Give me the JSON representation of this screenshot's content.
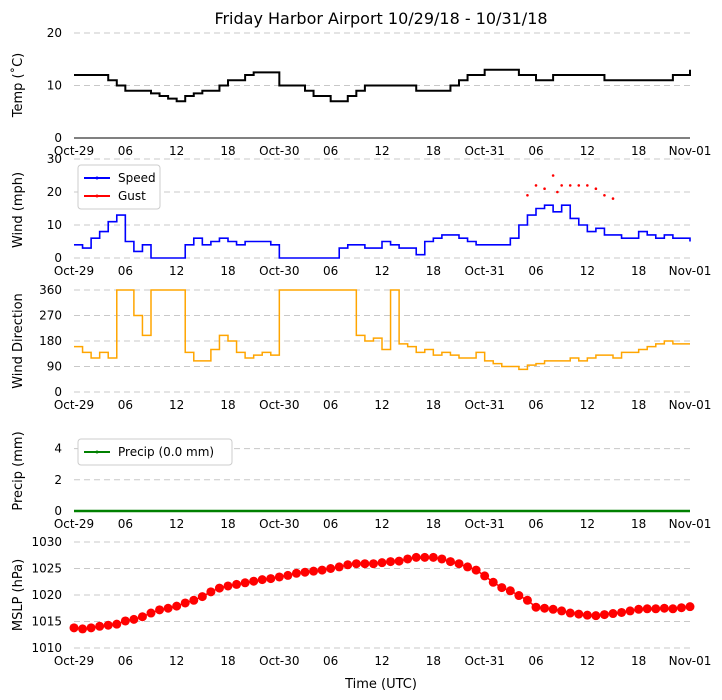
{
  "title": "Friday Harbor Airport 10/29/18 - 10/31/18",
  "x_axis_label": "Time (UTC)",
  "x_ticks": [
    "Oct-29",
    "06",
    "12",
    "18",
    "Oct-30",
    "06",
    "12",
    "18",
    "Oct-31",
    "06",
    "12",
    "18",
    "Nov-01"
  ],
  "colors": {
    "temp": "#000000",
    "speed": "#0000ff",
    "gust": "#ff0000",
    "direction": "#ffa500",
    "precip": "#008000",
    "mslp": "#ff0000",
    "grid": "#c8c8c8"
  },
  "chart_data": [
    {
      "type": "line",
      "name": "temperature",
      "ylabel": "Temp (˚C)",
      "ylim": [
        0,
        20
      ],
      "yticks": [
        "0",
        "10",
        "20"
      ],
      "x": [
        0,
        2,
        4,
        5,
        6,
        8,
        9,
        10,
        11,
        12,
        13,
        14,
        15,
        16,
        17,
        18,
        19,
        20,
        21,
        22,
        24,
        25,
        26,
        27,
        28,
        30,
        31,
        32,
        33,
        34,
        36,
        38,
        40,
        41,
        42,
        43,
        44,
        45,
        46,
        48,
        50,
        52,
        54,
        56,
        58,
        60,
        62,
        64,
        66,
        68,
        70,
        72
      ],
      "values": [
        12,
        12,
        11,
        10,
        9,
        9,
        8.5,
        8,
        7.5,
        7,
        8,
        8.5,
        9,
        9,
        10,
        11,
        11,
        12,
        12.5,
        12.5,
        10,
        10,
        10,
        9,
        8,
        7,
        7,
        8,
        9,
        10,
        10,
        10,
        9,
        9,
        9,
        9,
        10,
        11,
        12,
        13,
        13,
        12,
        11,
        12,
        12,
        12,
        11,
        11,
        11,
        11,
        12,
        13
      ]
    },
    {
      "type": "line",
      "name": "wind",
      "ylabel": "Wind (mph)",
      "ylim": [
        0,
        30
      ],
      "yticks": [
        "0",
        "10",
        "20",
        "30"
      ],
      "legend": [
        {
          "label": "Speed",
          "color": "#0000ff"
        },
        {
          "label": "Gust",
          "color": "#ff0000"
        }
      ],
      "series": [
        {
          "name": "Speed",
          "x": [
            0,
            1,
            2,
            3,
            4,
            5,
            6,
            7,
            8,
            9,
            10,
            11,
            12,
            13,
            14,
            15,
            16,
            17,
            18,
            19,
            20,
            21,
            22,
            23,
            24,
            25,
            26,
            27,
            28,
            29,
            30,
            31,
            32,
            33,
            34,
            35,
            36,
            37,
            38,
            39,
            40,
            41,
            42,
            43,
            44,
            45,
            46,
            47,
            48,
            49,
            50,
            51,
            52,
            53,
            54,
            55,
            56,
            57,
            58,
            59,
            60,
            61,
            62,
            63,
            64,
            65,
            66,
            67,
            68,
            69,
            70,
            71,
            72
          ],
          "values": [
            4,
            3,
            6,
            8,
            11,
            13,
            5,
            2,
            4,
            0,
            0,
            0,
            0,
            4,
            6,
            4,
            5,
            6,
            5,
            4,
            5,
            5,
            5,
            4,
            0,
            0,
            0,
            0,
            0,
            0,
            0,
            3,
            4,
            4,
            3,
            3,
            5,
            4,
            3,
            3,
            1,
            5,
            6,
            7,
            7,
            6,
            5,
            4,
            4,
            4,
            4,
            6,
            10,
            13,
            15,
            16,
            14,
            16,
            12,
            10,
            8,
            9,
            7,
            7,
            6,
            6,
            8,
            7,
            6,
            7,
            6,
            6,
            5
          ]
        },
        {
          "name": "Gust",
          "x": [
            53,
            54,
            55,
            56,
            56.5,
            57,
            58,
            59,
            60,
            61,
            62,
            63
          ],
          "values": [
            19,
            22,
            21,
            25,
            20,
            22,
            22,
            22,
            22,
            21,
            19,
            18
          ]
        }
      ]
    },
    {
      "type": "line",
      "name": "direction",
      "ylabel": "Wind Direction",
      "ylim": [
        0,
        360
      ],
      "yticks": [
        "0",
        "90",
        "180",
        "270",
        "360"
      ],
      "x": [
        0,
        1,
        2,
        3,
        4,
        5,
        6,
        7,
        8,
        9,
        10,
        11,
        12,
        13,
        14,
        15,
        16,
        17,
        18,
        19,
        20,
        21,
        22,
        23,
        24,
        25,
        26,
        27,
        28,
        29,
        30,
        31,
        32,
        33,
        34,
        35,
        36,
        37,
        38,
        39,
        40,
        41,
        42,
        43,
        44,
        45,
        46,
        47,
        48,
        49,
        50,
        51,
        52,
        53,
        54,
        55,
        56,
        57,
        58,
        59,
        60,
        61,
        62,
        63,
        64,
        65,
        66,
        67,
        68,
        69,
        70,
        71,
        72
      ],
      "values": [
        160,
        140,
        120,
        140,
        120,
        360,
        360,
        270,
        200,
        360,
        360,
        360,
        360,
        140,
        110,
        110,
        150,
        200,
        180,
        140,
        120,
        130,
        140,
        130,
        360,
        360,
        360,
        360,
        360,
        360,
        360,
        360,
        360,
        200,
        180,
        190,
        150,
        360,
        170,
        160,
        140,
        150,
        130,
        140,
        130,
        120,
        120,
        140,
        110,
        100,
        90,
        90,
        80,
        95,
        100,
        110,
        110,
        110,
        120,
        110,
        120,
        130,
        130,
        120,
        140,
        140,
        150,
        160,
        170,
        180,
        170,
        170,
        170
      ]
    },
    {
      "type": "line",
      "name": "precip",
      "ylabel": "Precip (mm)",
      "ylim": [
        0,
        5
      ],
      "yticks": [
        "0",
        "2",
        "4"
      ],
      "legend": [
        {
          "label": "Precip (0.0 mm)",
          "color": "#008000"
        }
      ],
      "x": [
        0,
        72
      ],
      "values": [
        0,
        0
      ]
    },
    {
      "type": "line",
      "name": "mslp",
      "ylabel": "MSLP (hPa)",
      "ylim": [
        1010,
        1030
      ],
      "yticks": [
        "1010",
        "1015",
        "1020",
        "1025",
        "1030"
      ],
      "x": [
        0,
        1,
        2,
        3,
        4,
        5,
        6,
        7,
        8,
        9,
        10,
        11,
        12,
        13,
        14,
        15,
        16,
        17,
        18,
        19,
        20,
        21,
        22,
        23,
        24,
        25,
        26,
        27,
        28,
        29,
        30,
        31,
        32,
        33,
        34,
        35,
        36,
        37,
        38,
        39,
        40,
        41,
        42,
        43,
        44,
        45,
        46,
        47,
        48,
        49,
        50,
        51,
        52,
        53,
        54,
        55,
        56,
        57,
        58,
        59,
        60,
        61,
        62,
        63,
        64,
        65,
        66,
        67,
        68,
        69,
        70,
        71,
        72
      ],
      "values": [
        1013.8,
        1013.6,
        1013.8,
        1014.1,
        1014.3,
        1014.5,
        1015.1,
        1015.4,
        1015.9,
        1016.6,
        1017.2,
        1017.5,
        1017.9,
        1018.5,
        1019,
        1019.7,
        1020.6,
        1021.3,
        1021.7,
        1022,
        1022.3,
        1022.6,
        1022.9,
        1023.1,
        1023.4,
        1023.7,
        1024.1,
        1024.3,
        1024.5,
        1024.7,
        1025,
        1025.3,
        1025.7,
        1025.9,
        1025.9,
        1025.9,
        1026.1,
        1026.3,
        1026.4,
        1026.8,
        1027.1,
        1027.1,
        1027.1,
        1026.8,
        1026.3,
        1025.9,
        1025.3,
        1024.7,
        1023.6,
        1022.4,
        1021.4,
        1020.8,
        1019.9,
        1019,
        1017.7,
        1017.5,
        1017.3,
        1017,
        1016.6,
        1016.4,
        1016.2,
        1016.1,
        1016.3,
        1016.5,
        1016.7,
        1017,
        1017.3,
        1017.4,
        1017.4,
        1017.5,
        1017.4,
        1017.6,
        1017.8
      ]
    }
  ]
}
